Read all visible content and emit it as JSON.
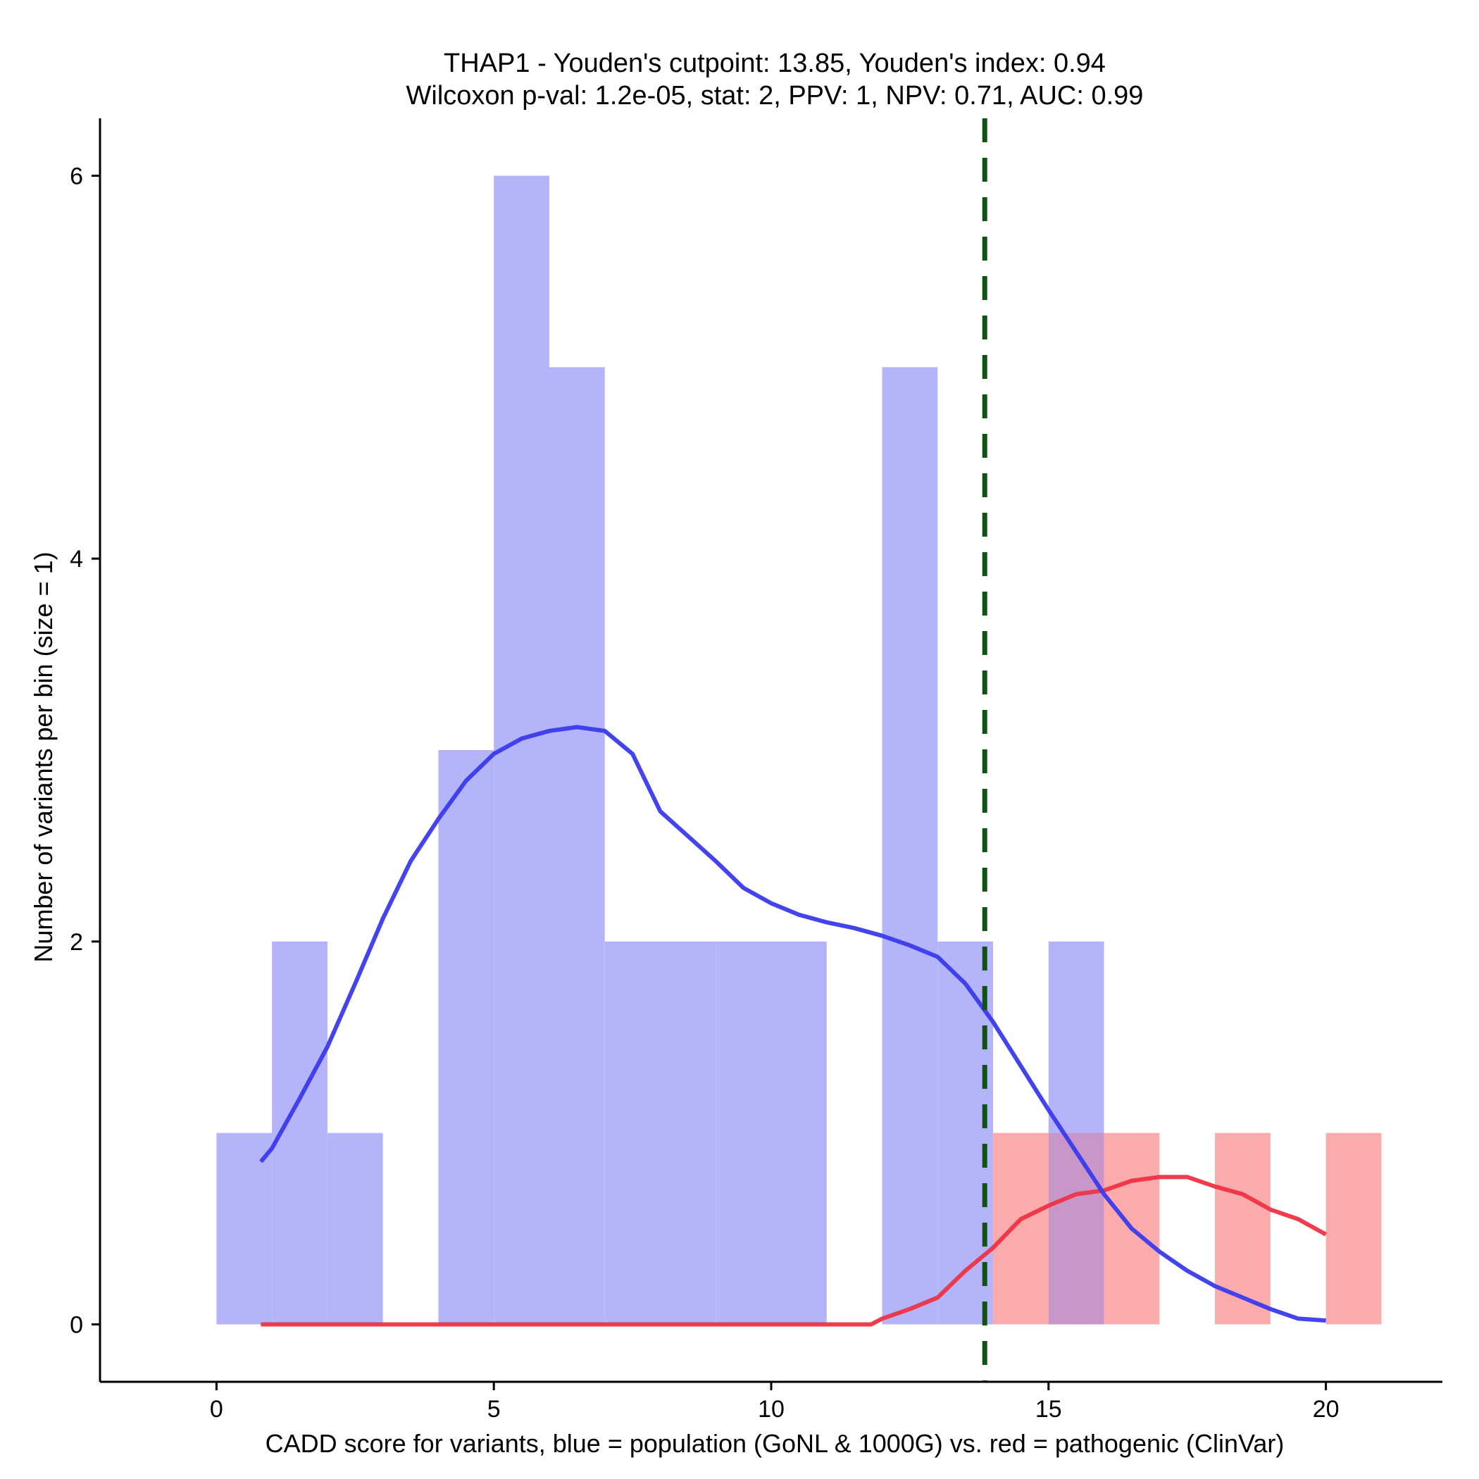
{
  "chart_data": {
    "type": "histogram",
    "title_line1": "THAP1 - Youden's cutpoint: 13.85, Youden's index: 0.94",
    "title_line2": "Wilcoxon p-val: 1.2e-05, stat: 2, PPV: 1, NPV: 0.71, AUC: 0.99",
    "xlabel": "CADD score for variants, blue = population (GoNL & 1000G) vs. red = pathogenic (ClinVar)",
    "ylabel": "Number of variants per bin (size = 1)",
    "xlim": [
      -2.1,
      22.1
    ],
    "ylim": [
      -0.3,
      6.3
    ],
    "x_ticks": [
      0,
      5,
      10,
      15,
      20
    ],
    "x_tick_labels": [
      "0",
      "5",
      "10",
      "15",
      "20"
    ],
    "y_ticks": [
      0,
      2,
      4,
      6
    ],
    "y_tick_labels": [
      "0",
      "2",
      "4",
      "6"
    ],
    "cutpoint": 13.85,
    "bin_width": 1,
    "colors": {
      "population_bar": "#b4b4fa",
      "pathogenic_bar": "#fbabab",
      "overlap_bar": "#c896c8",
      "population_line": "#3a3aee",
      "pathogenic_line": "#ee3344",
      "cutpoint_line": "#0f550f"
    },
    "series": [
      {
        "name": "population (GoNL & 1000G)",
        "bins": [
          {
            "start": 0,
            "count": 1
          },
          {
            "start": 1,
            "count": 2
          },
          {
            "start": 2,
            "count": 1
          },
          {
            "start": 4,
            "count": 3
          },
          {
            "start": 5,
            "count": 6
          },
          {
            "start": 6,
            "count": 5
          },
          {
            "start": 7,
            "count": 2
          },
          {
            "start": 8,
            "count": 2
          },
          {
            "start": 9,
            "count": 2
          },
          {
            "start": 10,
            "count": 2
          },
          {
            "start": 12,
            "count": 5
          },
          {
            "start": 13,
            "count": 2
          },
          {
            "start": 15,
            "count": 2
          }
        ],
        "density_line": {
          "x": [
            0.8,
            1.0,
            1.5,
            2.0,
            2.5,
            3.0,
            3.5,
            4.0,
            4.5,
            5.0,
            5.5,
            6.0,
            6.5,
            7.0,
            7.5,
            8.0,
            8.5,
            9.0,
            9.5,
            10.0,
            10.5,
            11.0,
            11.5,
            12.0,
            12.5,
            13.0,
            13.5,
            14.0,
            14.5,
            15.0,
            15.5,
            16.0,
            16.5,
            17.0,
            17.5,
            18.0,
            18.5,
            19.0,
            19.5,
            20.0
          ],
          "y": [
            0.85,
            0.92,
            1.18,
            1.45,
            1.78,
            2.12,
            2.42,
            2.64,
            2.84,
            2.98,
            3.06,
            3.1,
            3.12,
            3.1,
            2.98,
            2.68,
            2.55,
            2.42,
            2.28,
            2.2,
            2.14,
            2.1,
            2.07,
            2.03,
            1.98,
            1.92,
            1.78,
            1.58,
            1.35,
            1.12,
            0.9,
            0.68,
            0.5,
            0.38,
            0.28,
            0.2,
            0.14,
            0.08,
            0.03,
            0.02
          ]
        }
      },
      {
        "name": "pathogenic (ClinVar)",
        "bins": [
          {
            "start": 14,
            "count": 1
          },
          {
            "start": 15,
            "count": 1
          },
          {
            "start": 16,
            "count": 1
          },
          {
            "start": 18,
            "count": 1
          },
          {
            "start": 20,
            "count": 1
          }
        ],
        "density_line": {
          "x": [
            0.8,
            11.8,
            12.0,
            12.5,
            13.0,
            13.5,
            14.0,
            14.5,
            15.0,
            15.5,
            16.0,
            16.5,
            17.0,
            17.5,
            18.0,
            18.5,
            19.0,
            19.5,
            20.0
          ],
          "y": [
            0,
            0,
            0.03,
            0.08,
            0.14,
            0.28,
            0.4,
            0.55,
            0.62,
            0.68,
            0.7,
            0.75,
            0.77,
            0.77,
            0.72,
            0.68,
            0.6,
            0.55,
            0.47
          ]
        }
      }
    ]
  }
}
